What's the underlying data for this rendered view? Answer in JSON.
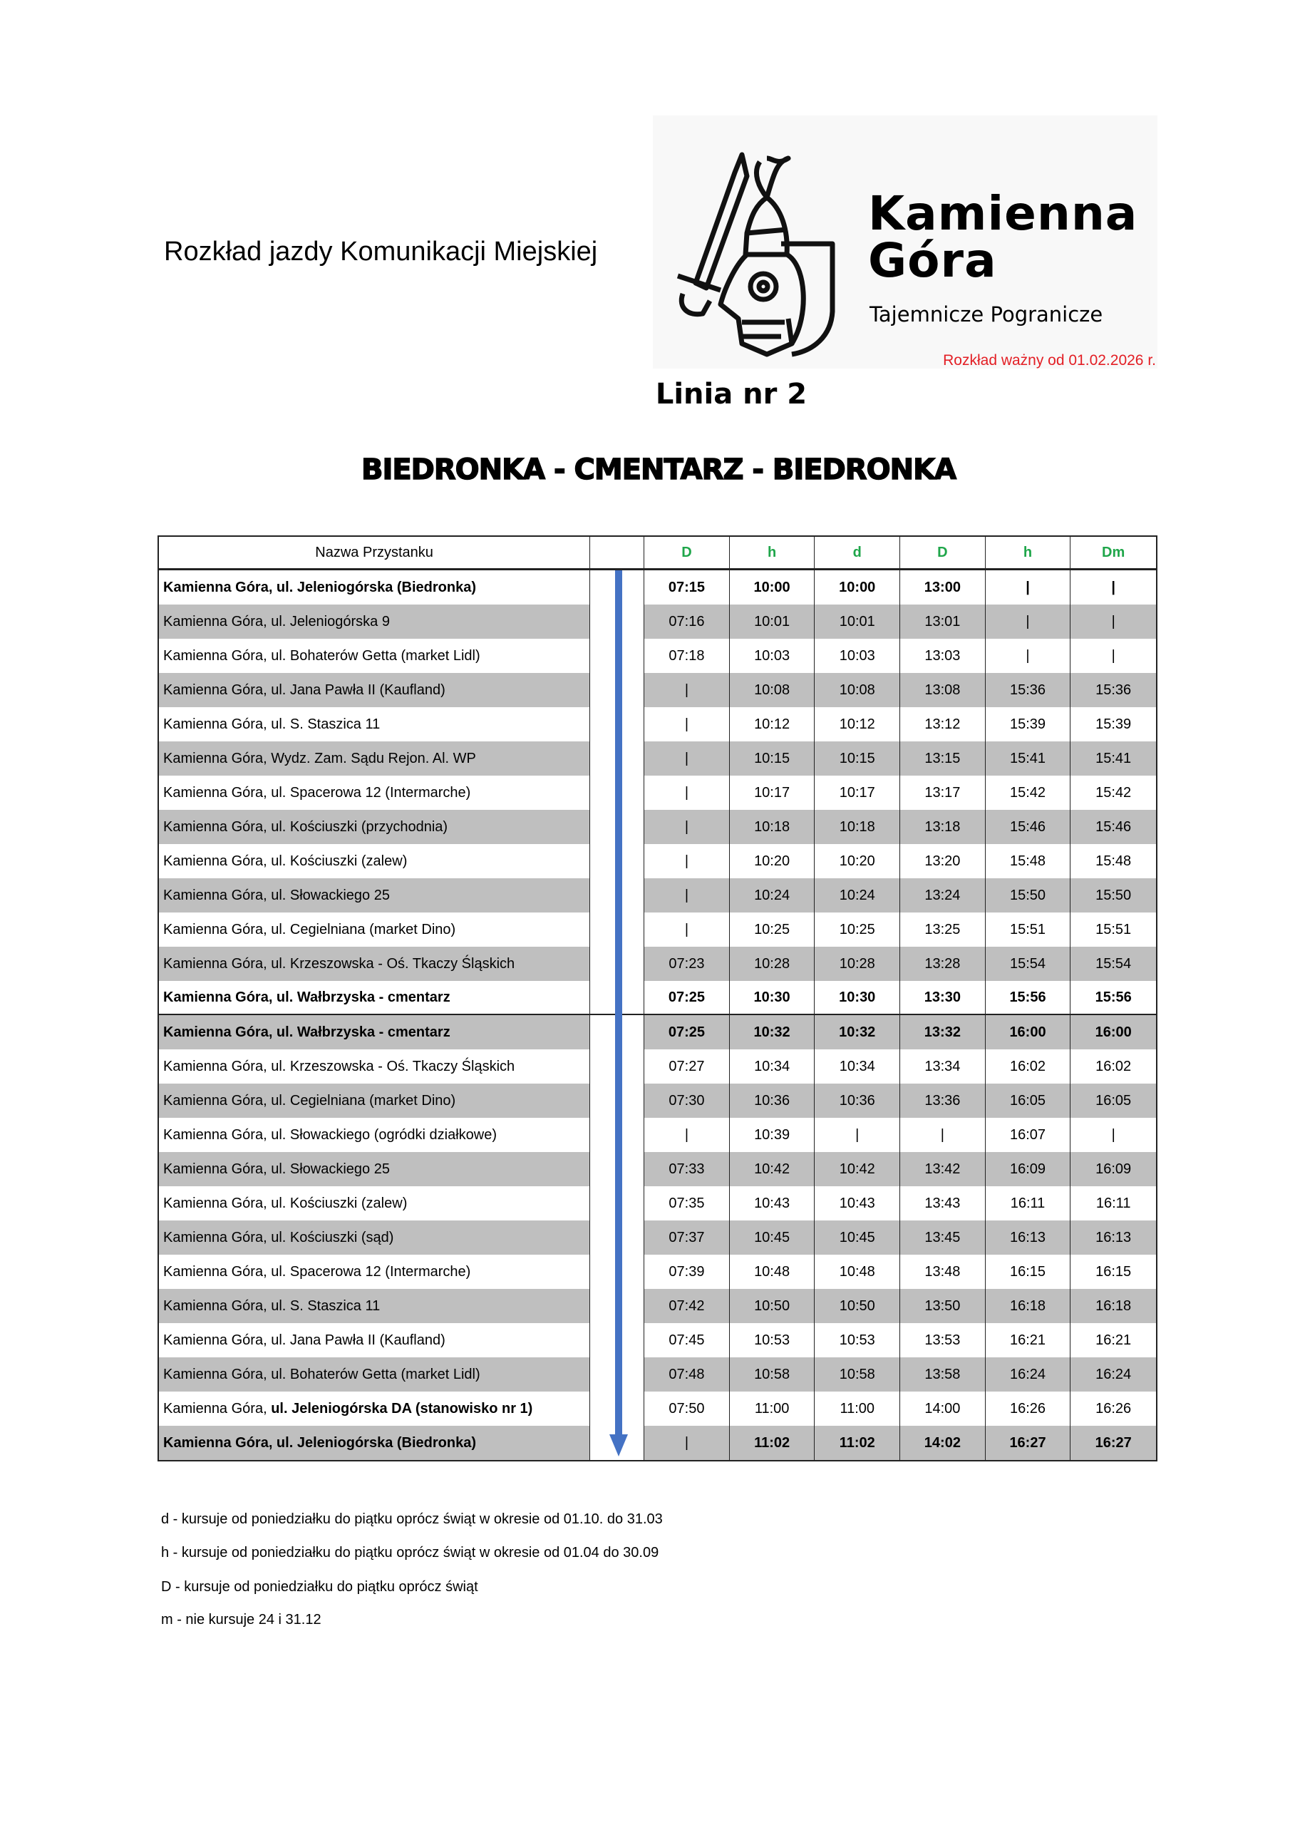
{
  "header": {
    "title": "Rozkład jazdy Komunikacji Miejskiej",
    "logo": {
      "name_line1": "Kamienna",
      "name_line2": "Góra",
      "tagline": "Tajemnicze Pogranicze"
    },
    "valid_from": "Rozkład ważny od 01.02.2026 r.",
    "line": "Linia nr 2",
    "route": "BIEDRONKA - CMENTARZ - BIEDRONKA"
  },
  "colors": {
    "accent_green": "#1fa64a",
    "valid_red": "#e31e24",
    "arrow_blue": "#4472c4",
    "row_gray": "#bfbfbf"
  },
  "table": {
    "stop_header": "Nazwa Przystanku",
    "columns": [
      "D",
      "h",
      "d",
      "D",
      "h",
      "Dm"
    ],
    "rows": [
      {
        "stop": "Kamienna Góra, ul. Jeleniogórska (Biedronka)",
        "bold": true,
        "times": [
          "07:15",
          "10:00",
          "10:00",
          "13:00",
          "|",
          "|"
        ]
      },
      {
        "stop": "Kamienna Góra, ul. Jeleniogórska 9",
        "times": [
          "07:16",
          "10:01",
          "10:01",
          "13:01",
          "|",
          "|"
        ]
      },
      {
        "stop": "Kamienna Góra, ul. Bohaterów Getta (market Lidl)",
        "times": [
          "07:18",
          "10:03",
          "10:03",
          "13:03",
          "|",
          "|"
        ]
      },
      {
        "stop": "Kamienna Góra, ul. Jana Pawła II (Kaufland)",
        "times": [
          "|",
          "10:08",
          "10:08",
          "13:08",
          "15:36",
          "15:36"
        ]
      },
      {
        "stop": "Kamienna Góra, ul. S. Staszica 11",
        "times": [
          "|",
          "10:12",
          "10:12",
          "13:12",
          "15:39",
          "15:39"
        ]
      },
      {
        "stop": "Kamienna Góra, Wydz. Zam. Sądu Rejon. Al. WP",
        "times": [
          "|",
          "10:15",
          "10:15",
          "13:15",
          "15:41",
          "15:41"
        ]
      },
      {
        "stop": "Kamienna Góra, ul. Spacerowa 12 (Intermarche)",
        "times": [
          "|",
          "10:17",
          "10:17",
          "13:17",
          "15:42",
          "15:42"
        ]
      },
      {
        "stop": "Kamienna Góra, ul. Kościuszki (przychodnia)",
        "times": [
          "|",
          "10:18",
          "10:18",
          "13:18",
          "15:46",
          "15:46"
        ]
      },
      {
        "stop": "Kamienna Góra, ul. Kościuszki (zalew)",
        "times": [
          "|",
          "10:20",
          "10:20",
          "13:20",
          "15:48",
          "15:48"
        ]
      },
      {
        "stop": "Kamienna Góra, ul. Słowackiego 25",
        "times": [
          "|",
          "10:24",
          "10:24",
          "13:24",
          "15:50",
          "15:50"
        ]
      },
      {
        "stop": "Kamienna Góra, ul. Cegielniana (market Dino)",
        "times": [
          "|",
          "10:25",
          "10:25",
          "13:25",
          "15:51",
          "15:51"
        ]
      },
      {
        "stop": "Kamienna Góra, ul. Krzeszowska - Oś. Tkaczy Śląskich",
        "times": [
          "07:23",
          "10:28",
          "10:28",
          "13:28",
          "15:54",
          "15:54"
        ]
      },
      {
        "stop": "Kamienna Góra, ul. Wałbrzyska - cmentarz",
        "bold": true,
        "times": [
          "07:25",
          "10:30",
          "10:30",
          "13:30",
          "15:56",
          "15:56"
        ]
      },
      {
        "stop": "Kamienna Góra, ul. Wałbrzyska - cmentarz",
        "bold": true,
        "times": [
          "07:25",
          "10:32",
          "10:32",
          "13:32",
          "16:00",
          "16:00"
        ]
      },
      {
        "stop": "Kamienna Góra, ul. Krzeszowska - Oś. Tkaczy Śląskich",
        "times": [
          "07:27",
          "10:34",
          "10:34",
          "13:34",
          "16:02",
          "16:02"
        ]
      },
      {
        "stop": "Kamienna Góra, ul. Cegielniana (market Dino)",
        "times": [
          "07:30",
          "10:36",
          "10:36",
          "13:36",
          "16:05",
          "16:05"
        ]
      },
      {
        "stop": "Kamienna Góra, ul. Słowackiego (ogródki działkowe)",
        "times": [
          "|",
          "10:39",
          "|",
          "|",
          "16:07",
          "|"
        ]
      },
      {
        "stop": "Kamienna Góra, ul. Słowackiego 25",
        "times": [
          "07:33",
          "10:42",
          "10:42",
          "13:42",
          "16:09",
          "16:09"
        ]
      },
      {
        "stop": "Kamienna Góra, ul. Kościuszki (zalew)",
        "times": [
          "07:35",
          "10:43",
          "10:43",
          "13:43",
          "16:11",
          "16:11"
        ]
      },
      {
        "stop": "Kamienna Góra, ul. Kościuszki (sąd)",
        "times": [
          "07:37",
          "10:45",
          "10:45",
          "13:45",
          "16:13",
          "16:13"
        ]
      },
      {
        "stop": "Kamienna Góra, ul. Spacerowa 12 (Intermarche)",
        "times": [
          "07:39",
          "10:48",
          "10:48",
          "13:48",
          "16:15",
          "16:15"
        ]
      },
      {
        "stop": "Kamienna Góra, ul. S. Staszica 11",
        "times": [
          "07:42",
          "10:50",
          "10:50",
          "13:50",
          "16:18",
          "16:18"
        ]
      },
      {
        "stop": "Kamienna Góra, ul. Jana Pawła II (Kaufland)",
        "times": [
          "07:45",
          "10:53",
          "10:53",
          "13:53",
          "16:21",
          "16:21"
        ]
      },
      {
        "stop": "Kamienna Góra, ul. Bohaterów Getta (market Lidl)",
        "times": [
          "07:48",
          "10:58",
          "10:58",
          "13:58",
          "16:24",
          "16:24"
        ]
      },
      {
        "stop": "Kamienna Góra, ",
        "stop_bold": "ul. Jeleniogórska DA (stanowisko nr 1)",
        "times": [
          "07:50",
          "11:00",
          "11:00",
          "14:00",
          "16:26",
          "16:26"
        ]
      },
      {
        "stop": "Kamienna Góra, ul. Jeleniogórska (Biedronka)",
        "bold": true,
        "times_bold_from": 1,
        "times": [
          "|",
          "11:02",
          "11:02",
          "14:02",
          "16:27",
          "16:27"
        ]
      }
    ]
  },
  "notes": [
    "d - kursuje od poniedziałku do piątku oprócz świąt w okresie od 01.10. do 31.03",
    "h - kursuje od poniedziałku do piątku oprócz świąt w okresie od 01.04 do 30.09",
    "D - kursuje od poniedziałku do piątku oprócz świąt",
    "m - nie kursuje 24 i 31.12"
  ]
}
